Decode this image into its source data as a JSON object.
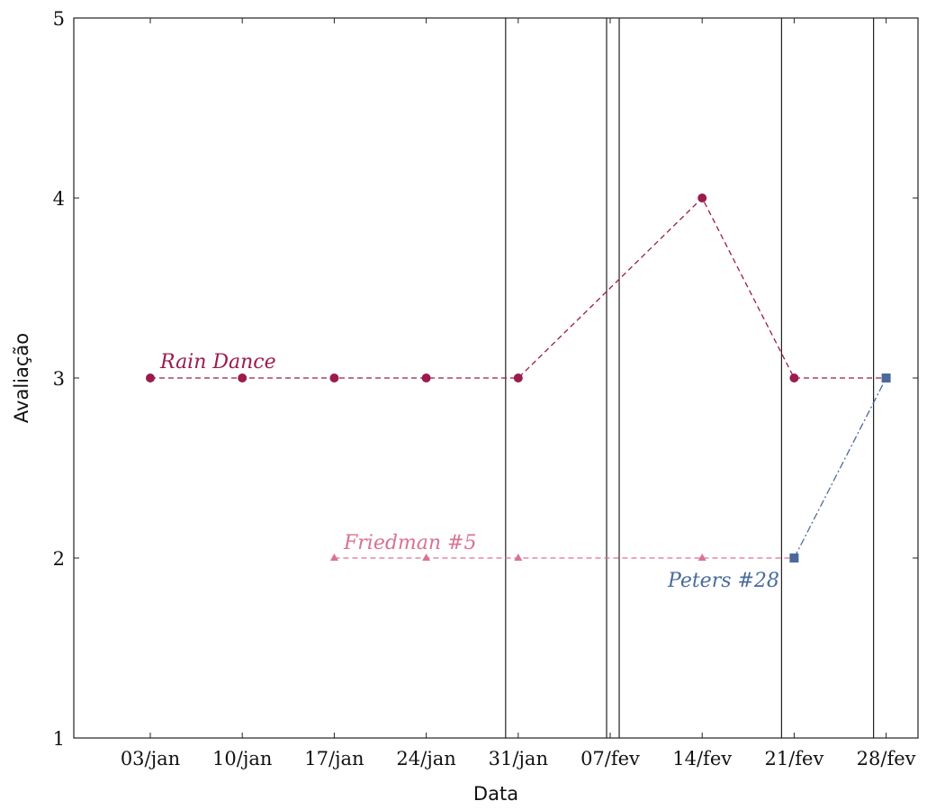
{
  "chart_data": {
    "type": "line",
    "title": "",
    "xlabel": "Data",
    "ylabel": "Avaliação",
    "ylim": [
      1,
      5
    ],
    "yticks": [
      "1",
      "2",
      "3",
      "4",
      "5"
    ],
    "categories": [
      "03/jan",
      "10/jan",
      "17/jan",
      "24/jan",
      "31/jan",
      "07/fev",
      "14/fev",
      "21/fev",
      "28/fev"
    ],
    "grid": false,
    "vertical_rules": [
      "31/jan (before)",
      "07/fev (both sides)",
      "21/fev (before)",
      "28/fev (before)"
    ],
    "series": [
      {
        "name": "Rain Dance",
        "color": "#9b1b4e",
        "marker": "circle",
        "linestyle": "dashed",
        "points": [
          {
            "x": "03/jan",
            "y": 3
          },
          {
            "x": "10/jan",
            "y": 3
          },
          {
            "x": "17/jan",
            "y": 3
          },
          {
            "x": "24/jan",
            "y": 3
          },
          {
            "x": "31/jan",
            "y": 3
          },
          {
            "x": "14/fev",
            "y": 4
          },
          {
            "x": "21/fev",
            "y": 3
          },
          {
            "x": "28/fev",
            "y": 3
          }
        ]
      },
      {
        "name": "Friedman #5",
        "color": "#d97390",
        "marker": "triangle",
        "linestyle": "dashed",
        "points": [
          {
            "x": "17/jan",
            "y": 2
          },
          {
            "x": "24/jan",
            "y": 2
          },
          {
            "x": "31/jan",
            "y": 2
          },
          {
            "x": "14/fev",
            "y": 2
          },
          {
            "x": "21/fev",
            "y": 2
          }
        ]
      },
      {
        "name": "Peters #28",
        "color": "#4a6a9c",
        "marker": "square",
        "linestyle": "dashdot",
        "points": [
          {
            "x": "21/fev",
            "y": 2
          },
          {
            "x": "28/fev",
            "y": 3
          }
        ]
      }
    ]
  }
}
